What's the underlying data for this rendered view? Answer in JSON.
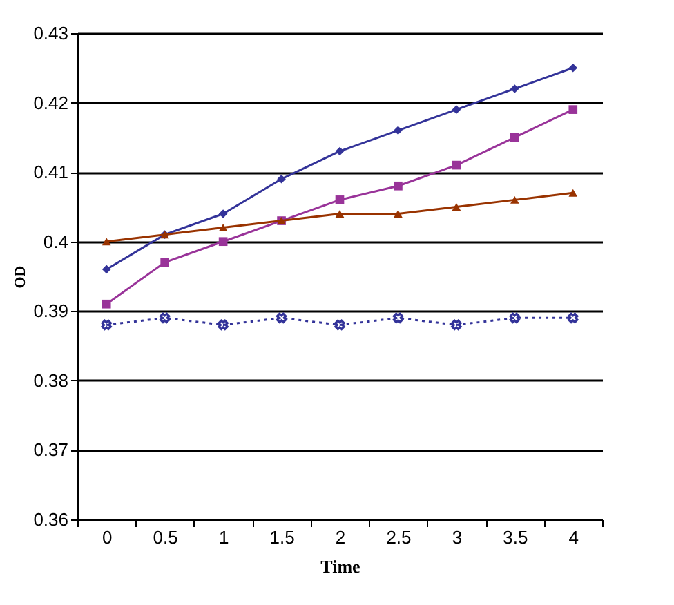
{
  "chart_data": {
    "type": "line",
    "xlabel": "Time",
    "ylabel": "OD",
    "categories": [
      "0",
      "0.5",
      "1",
      "1.5",
      "2",
      "2.5",
      "3",
      "3.5",
      "4"
    ],
    "series": [
      {
        "color": "#333399",
        "marker": "diamond",
        "values": [
          0.396,
          0.401,
          0.404,
          0.409,
          0.413,
          0.416,
          0.419,
          0.422,
          0.425
        ]
      },
      {
        "color": "#993399",
        "marker": "square",
        "values": [
          0.391,
          0.397,
          0.4,
          0.403,
          0.406,
          0.408,
          0.411,
          0.415,
          0.419
        ]
      },
      {
        "color": "#993300",
        "marker": "triangle",
        "values": [
          0.4,
          0.401,
          0.402,
          0.403,
          0.404,
          0.404,
          0.405,
          0.406,
          0.407
        ]
      },
      {
        "color": "#333399",
        "marker": "cross",
        "line_style": "dotted",
        "values": [
          0.388,
          0.389,
          0.388,
          0.389,
          0.388,
          0.389,
          0.388,
          0.389,
          0.389
        ]
      }
    ],
    "ylim": [
      0.36,
      0.43
    ],
    "yticks": [
      0.36,
      0.37,
      0.38,
      0.39,
      0.4,
      0.41,
      0.42,
      0.43
    ],
    "grid": "y"
  }
}
